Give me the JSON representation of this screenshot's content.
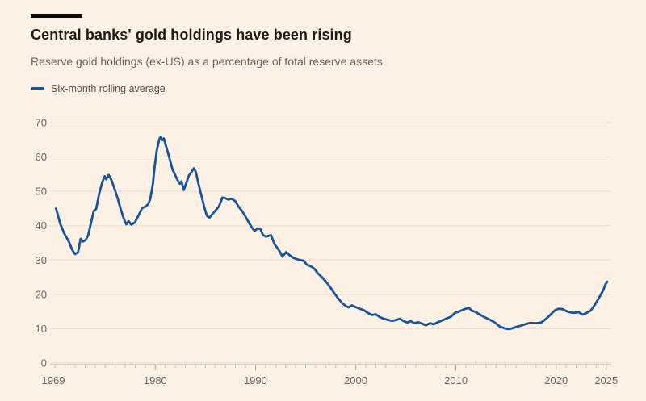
{
  "header": {
    "title": "Central banks' gold holdings have been rising",
    "subtitle": "Reserve gold holdings (ex-US) as a percentage of total reserve assets"
  },
  "colors": {
    "background": "#FDF1E5",
    "top_bar": "#0A0A0A",
    "line": "#17549A",
    "grid": "#EDDCCB",
    "axis_line": "#B6AA9D",
    "tick": "#C8BBAD",
    "axis_text": "#6F665E",
    "title_text": "#1D1915",
    "subtitle_text": "#6B625B"
  },
  "chart_data": {
    "type": "line",
    "title": "Central banks' gold holdings have been rising",
    "subtitle": "Reserve gold holdings (ex-US) as a percentage of total reserve assets",
    "legend_position": "top-left",
    "grid": "horizontal",
    "ylim": [
      0,
      70
    ],
    "y_ticks": [
      0,
      10,
      20,
      30,
      40,
      50,
      60,
      70
    ],
    "x_domain": [
      1969.5,
      2025.5
    ],
    "x_tick_labels": [
      1969,
      1980,
      1990,
      2000,
      2010,
      2020,
      2025
    ],
    "minor_tick_years": "yearly",
    "series": [
      {
        "name": "Six-month rolling average",
        "color": "#17549A",
        "points": [
          [
            1970.1,
            45.0
          ],
          [
            1970.5,
            40.7
          ],
          [
            1970.9,
            37.8
          ],
          [
            1971.4,
            35.2
          ],
          [
            1971.7,
            33.0
          ],
          [
            1972.0,
            31.7
          ],
          [
            1972.3,
            32.3
          ],
          [
            1972.55,
            36.2
          ],
          [
            1972.8,
            35.4
          ],
          [
            1973.05,
            35.9
          ],
          [
            1973.3,
            37.2
          ],
          [
            1973.6,
            41.0
          ],
          [
            1973.85,
            44.2
          ],
          [
            1974.1,
            44.9
          ],
          [
            1974.4,
            49.3
          ],
          [
            1974.7,
            52.5
          ],
          [
            1974.95,
            54.4
          ],
          [
            1975.1,
            53.5
          ],
          [
            1975.35,
            54.8
          ],
          [
            1975.65,
            53.1
          ],
          [
            1975.95,
            50.6
          ],
          [
            1976.25,
            47.9
          ],
          [
            1976.55,
            44.8
          ],
          [
            1976.85,
            42.1
          ],
          [
            1977.1,
            40.4
          ],
          [
            1977.35,
            41.3
          ],
          [
            1977.6,
            40.3
          ],
          [
            1977.95,
            40.9
          ],
          [
            1978.35,
            43.1
          ],
          [
            1978.7,
            45.2
          ],
          [
            1979.0,
            45.5
          ],
          [
            1979.3,
            46.3
          ],
          [
            1979.5,
            47.8
          ],
          [
            1979.75,
            52.0
          ],
          [
            1979.95,
            57.5
          ],
          [
            1980.15,
            62.0
          ],
          [
            1980.4,
            65.2
          ],
          [
            1980.55,
            65.9
          ],
          [
            1980.7,
            64.9
          ],
          [
            1980.85,
            65.4
          ],
          [
            1981.05,
            63.4
          ],
          [
            1981.25,
            61.4
          ],
          [
            1981.45,
            59.3
          ],
          [
            1981.7,
            56.5
          ],
          [
            1981.95,
            55.0
          ],
          [
            1982.2,
            53.4
          ],
          [
            1982.45,
            52.2
          ],
          [
            1982.6,
            52.9
          ],
          [
            1982.85,
            50.4
          ],
          [
            1983.1,
            52.5
          ],
          [
            1983.35,
            54.6
          ],
          [
            1983.6,
            55.6
          ],
          [
            1983.85,
            56.7
          ],
          [
            1984.05,
            55.6
          ],
          [
            1984.3,
            52.3
          ],
          [
            1984.6,
            48.8
          ],
          [
            1984.9,
            45.3
          ],
          [
            1985.15,
            42.9
          ],
          [
            1985.4,
            42.3
          ],
          [
            1985.7,
            43.4
          ],
          [
            1986.0,
            44.4
          ],
          [
            1986.35,
            45.6
          ],
          [
            1986.7,
            48.2
          ],
          [
            1987.0,
            48.0
          ],
          [
            1987.3,
            47.6
          ],
          [
            1987.6,
            47.9
          ],
          [
            1988.0,
            47.1
          ],
          [
            1988.3,
            45.6
          ],
          [
            1988.7,
            44.1
          ],
          [
            1989.0,
            42.6
          ],
          [
            1989.3,
            41.1
          ],
          [
            1989.6,
            39.6
          ],
          [
            1989.9,
            38.5
          ],
          [
            1990.2,
            39.1
          ],
          [
            1990.45,
            39.2
          ],
          [
            1990.75,
            37.3
          ],
          [
            1991.05,
            36.8
          ],
          [
            1991.35,
            37.1
          ],
          [
            1991.55,
            37.2
          ],
          [
            1991.9,
            34.6
          ],
          [
            1992.3,
            33.0
          ],
          [
            1992.7,
            31.0
          ],
          [
            1993.05,
            32.3
          ],
          [
            1993.4,
            31.4
          ],
          [
            1993.8,
            30.6
          ],
          [
            1994.3,
            30.1
          ],
          [
            1994.8,
            29.8
          ],
          [
            1995.1,
            28.7
          ],
          [
            1995.5,
            28.2
          ],
          [
            1995.9,
            27.4
          ],
          [
            1996.2,
            26.2
          ],
          [
            1996.6,
            25.1
          ],
          [
            1997.0,
            23.8
          ],
          [
            1997.4,
            22.3
          ],
          [
            1997.8,
            20.6
          ],
          [
            1998.2,
            19.0
          ],
          [
            1998.6,
            17.6
          ],
          [
            1999.0,
            16.6
          ],
          [
            1999.3,
            16.2
          ],
          [
            1999.6,
            16.8
          ],
          [
            2000.0,
            16.3
          ],
          [
            2000.4,
            15.8
          ],
          [
            2000.8,
            15.4
          ],
          [
            2001.2,
            14.6
          ],
          [
            2001.6,
            14.0
          ],
          [
            2002.0,
            14.2
          ],
          [
            2002.4,
            13.4
          ],
          [
            2002.8,
            12.9
          ],
          [
            2003.2,
            12.6
          ],
          [
            2003.6,
            12.3
          ],
          [
            2004.0,
            12.5
          ],
          [
            2004.4,
            12.9
          ],
          [
            2004.8,
            12.2
          ],
          [
            2005.15,
            11.8
          ],
          [
            2005.5,
            12.2
          ],
          [
            2005.85,
            11.6
          ],
          [
            2006.2,
            11.9
          ],
          [
            2006.6,
            11.5
          ],
          [
            2007.0,
            11.0
          ],
          [
            2007.4,
            11.6
          ],
          [
            2007.8,
            11.3
          ],
          [
            2008.2,
            11.9
          ],
          [
            2008.6,
            12.4
          ],
          [
            2009.0,
            12.9
          ],
          [
            2009.5,
            13.5
          ],
          [
            2009.9,
            14.6
          ],
          [
            2010.4,
            15.1
          ],
          [
            2010.85,
            15.7
          ],
          [
            2011.3,
            16.1
          ],
          [
            2011.55,
            15.3
          ],
          [
            2011.95,
            14.9
          ],
          [
            2012.4,
            14.1
          ],
          [
            2012.9,
            13.3
          ],
          [
            2013.4,
            12.6
          ],
          [
            2013.9,
            11.8
          ],
          [
            2014.4,
            10.6
          ],
          [
            2014.9,
            10.1
          ],
          [
            2015.3,
            9.9
          ],
          [
            2015.7,
            10.2
          ],
          [
            2016.1,
            10.6
          ],
          [
            2016.5,
            10.9
          ],
          [
            2016.9,
            11.3
          ],
          [
            2017.4,
            11.7
          ],
          [
            2018.0,
            11.6
          ],
          [
            2018.5,
            11.8
          ],
          [
            2019.0,
            12.9
          ],
          [
            2019.4,
            14.0
          ],
          [
            2019.9,
            15.4
          ],
          [
            2020.25,
            15.8
          ],
          [
            2020.65,
            15.7
          ],
          [
            2021.2,
            14.9
          ],
          [
            2021.7,
            14.6
          ],
          [
            2022.25,
            14.8
          ],
          [
            2022.65,
            14.1
          ],
          [
            2023.05,
            14.6
          ],
          [
            2023.45,
            15.3
          ],
          [
            2023.85,
            16.9
          ],
          [
            2024.1,
            18.1
          ],
          [
            2024.4,
            19.6
          ],
          [
            2024.7,
            21.2
          ],
          [
            2024.9,
            22.8
          ],
          [
            2025.1,
            23.7
          ]
        ]
      }
    ]
  }
}
